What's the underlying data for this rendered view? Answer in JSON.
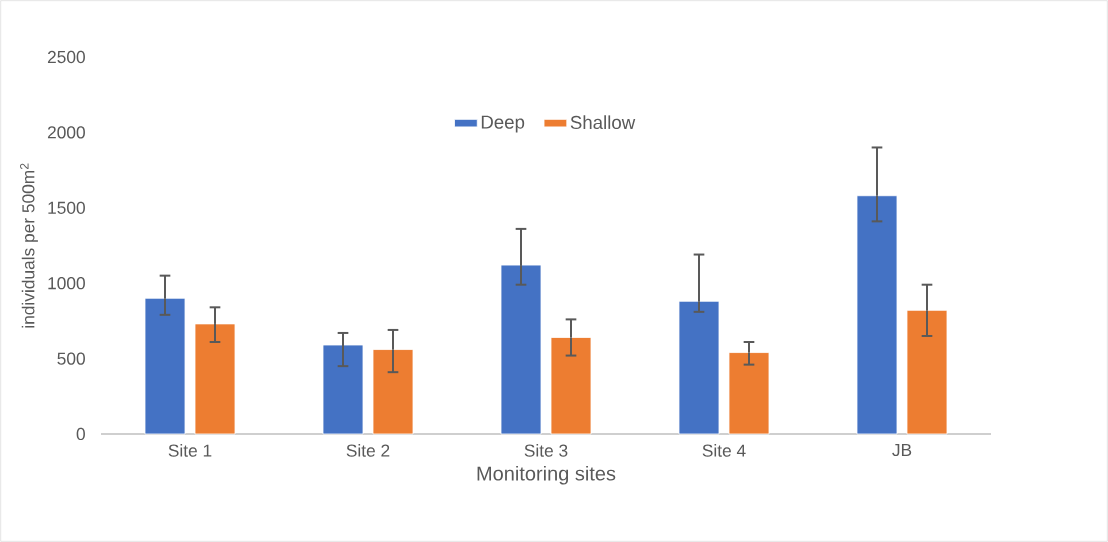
{
  "chart_data": {
    "type": "bar",
    "xlabel": "Monitoring sites",
    "ylabel": "individuals per 500m$^{2}$",
    "categories": [
      "Site 1",
      "Site 2",
      "Site 3",
      "Site 4",
      "JB"
    ],
    "series": [
      {
        "name": "Deep",
        "color": "#4472c4",
        "values": [
          900,
          590,
          1120,
          880,
          1580
        ],
        "errors": [
          [
            790,
            1050
          ],
          [
            450,
            670
          ],
          [
            990,
            1360
          ],
          [
            810,
            1190
          ],
          [
            1410,
            1900
          ]
        ]
      },
      {
        "name": "Shallow",
        "color": "#ed7d31",
        "values": [
          730,
          560,
          640,
          540,
          820
        ],
        "errors": [
          [
            610,
            840
          ],
          [
            410,
            690
          ],
          [
            520,
            760
          ],
          [
            460,
            610
          ],
          [
            650,
            990
          ]
        ]
      }
    ],
    "ylim": [
      0,
      2500
    ],
    "yticks": [
      0,
      500,
      1000,
      1500,
      2000,
      2500
    ],
    "legend": "top",
    "grid": false
  }
}
